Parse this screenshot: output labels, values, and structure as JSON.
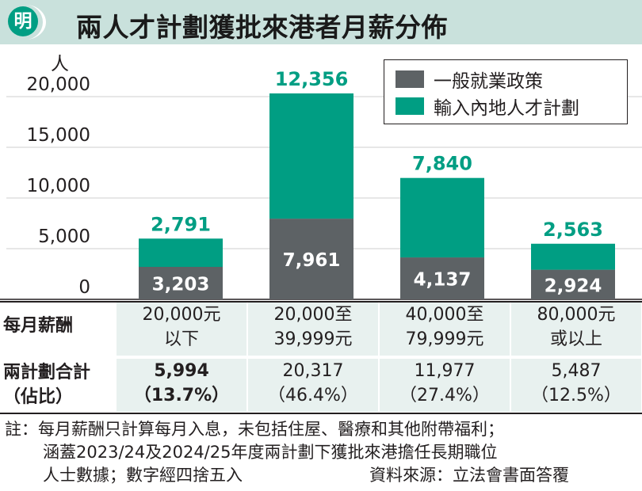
{
  "header": {
    "logo_char": "明",
    "title": "兩人才計劃獲批來港者月薪分佈"
  },
  "chart_data": {
    "type": "bar",
    "stacked": true,
    "title": "兩人才計劃獲批來港者月薪分佈",
    "ylabel": "人",
    "ylim": [
      0,
      20000
    ],
    "yticks": [
      0,
      5000,
      10000,
      15000,
      20000
    ],
    "ytick_labels": [
      "0",
      "5,000",
      "10,000",
      "15,000",
      "20,000"
    ],
    "grid": true,
    "legend_position": "top-right",
    "categories": [
      "20,000元以下",
      "20,000至39,999元",
      "40,000至79,999元",
      "80,000元或以上"
    ],
    "series": [
      {
        "name": "一般就業政策",
        "color": "#5d6265",
        "values": [
          3203,
          7961,
          4137,
          2924
        ],
        "labels": [
          "3,203",
          "7,961",
          "4,137",
          "2,924"
        ]
      },
      {
        "name": "輸入內地人才計劃",
        "color": "#009e83",
        "values": [
          2791,
          12356,
          7840,
          2563
        ],
        "labels": [
          "2,791",
          "12,356",
          "7,840",
          "2,563"
        ]
      }
    ]
  },
  "table": {
    "row1_label": "每月薪酬",
    "row2_label_line1": "兩計劃合計",
    "row2_label_line2": "（佔比）",
    "columns": [
      {
        "salary_line1": "20,000元",
        "salary_line2": "以下",
        "total": "5,994",
        "share": "（13.7%）"
      },
      {
        "salary_line1": "20,000至",
        "salary_line2": "39,999元",
        "total": "20,317",
        "share": "（46.4%）"
      },
      {
        "salary_line1": "40,000至",
        "salary_line2": "79,999元",
        "total": "11,977",
        "share": "（27.4%）"
      },
      {
        "salary_line1": "80,000元",
        "salary_line2": "或以上",
        "total": "5,487",
        "share": "（12.5%）"
      }
    ]
  },
  "note": {
    "line1": "註：每月薪酬只計算每月入息，未包括住屋、醫療和其他附帶福利；",
    "line2": "涵蓋2023/24及2024/25年度兩計劃下獲批來港擔任長期職位",
    "line3": "人士數據；數字經四捨五入",
    "source": "資料來源：立法會書面答覆"
  }
}
